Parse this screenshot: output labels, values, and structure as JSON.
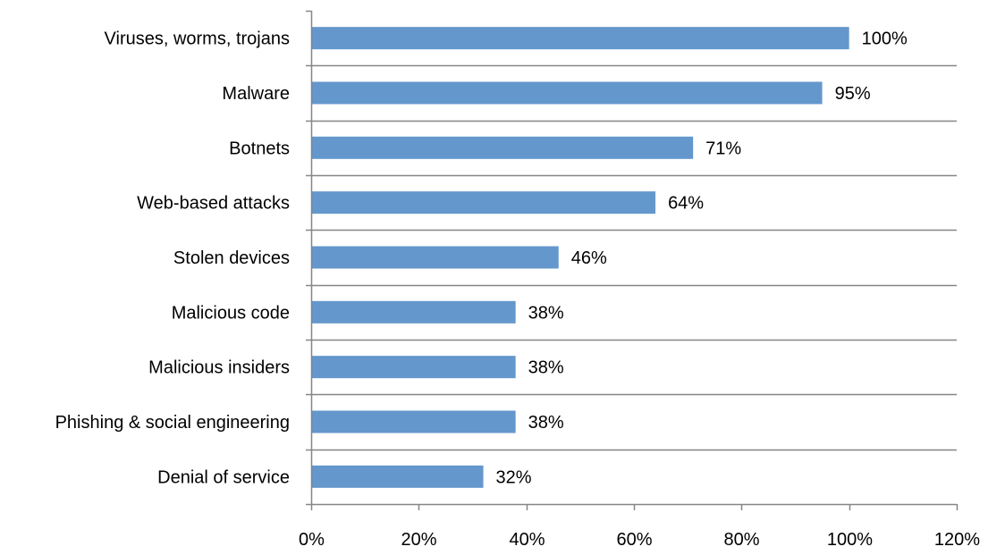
{
  "chart_data": {
    "type": "bar",
    "orientation": "horizontal",
    "title": "",
    "xlabel": "",
    "ylabel": "",
    "categories": [
      "Viruses, worms, trojans",
      "Malware",
      "Botnets",
      "Web-based attacks",
      "Stolen devices",
      "Malicious code",
      "Malicious insiders",
      "Phishing & social engineering",
      "Denial of service"
    ],
    "values": [
      100,
      95,
      71,
      64,
      46,
      38,
      38,
      38,
      32
    ],
    "value_labels": [
      "100%",
      "95%",
      "71%",
      "64%",
      "46%",
      "38%",
      "38%",
      "38%",
      "32%"
    ],
    "xlim": [
      0,
      120
    ],
    "x_ticks": [
      0,
      20,
      40,
      60,
      80,
      100,
      120
    ],
    "x_tick_labels": [
      "0%",
      "20%",
      "40%",
      "60%",
      "80%",
      "100%",
      "120%"
    ],
    "grid": "horizontal category separators",
    "legend": "none",
    "bar_color": "#6497CC",
    "axis_color": "#868686",
    "separator_color": "#868686"
  }
}
